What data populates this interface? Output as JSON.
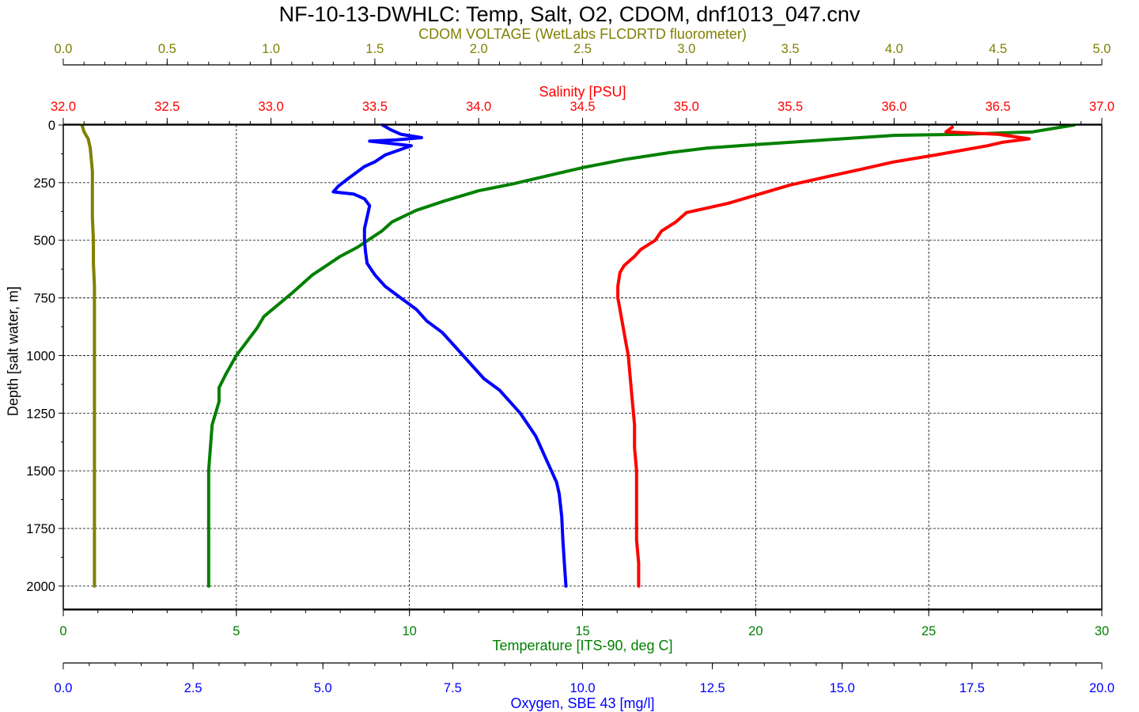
{
  "chart_data": {
    "type": "line",
    "title": "NF-10-13-DWHLC: Temp, Salt, O2, CDOM, dnf1013_047.cnv",
    "y_axis": {
      "label": "Depth [salt water, m]",
      "range": [
        0,
        2100
      ],
      "inverted": true,
      "ticks": [
        "0",
        "250",
        "500",
        "750",
        "1000",
        "1250",
        "1500",
        "1750",
        "2000"
      ],
      "tick_values": [
        0,
        250,
        500,
        750,
        1000,
        1250,
        1500,
        1750,
        2000
      ]
    },
    "x_axes": [
      {
        "id": "cdom",
        "position": "top",
        "label": "CDOM VOLTAGE (WetLabs FLCDRTD fluorometer)",
        "color": "#808000",
        "range": [
          0.0,
          5.0
        ],
        "ticks": [
          "0.0",
          "0.5",
          "1.0",
          "1.5",
          "2.0",
          "2.5",
          "3.0",
          "3.5",
          "4.0",
          "4.5",
          "5.0"
        ],
        "tick_values": [
          0.0,
          0.5,
          1.0,
          1.5,
          2.0,
          2.5,
          3.0,
          3.5,
          4.0,
          4.5,
          5.0
        ]
      },
      {
        "id": "salinity",
        "position": "top",
        "label": "Salinity [PSU]",
        "color": "#ff0000",
        "range": [
          32.0,
          37.0
        ],
        "ticks": [
          "32.0",
          "32.5",
          "33.0",
          "33.5",
          "34.0",
          "34.5",
          "35.0",
          "35.5",
          "36.0",
          "36.5",
          "37.0"
        ],
        "tick_values": [
          32.0,
          32.5,
          33.0,
          33.5,
          34.0,
          34.5,
          35.0,
          35.5,
          36.0,
          36.5,
          37.0
        ]
      },
      {
        "id": "temperature",
        "position": "bottom",
        "label": "Temperature [ITS-90, deg C]",
        "color": "#008000",
        "range": [
          0,
          30
        ],
        "ticks": [
          "0",
          "5",
          "10",
          "15",
          "20",
          "25",
          "30"
        ],
        "tick_values": [
          0,
          5,
          10,
          15,
          20,
          25,
          30
        ]
      },
      {
        "id": "oxygen",
        "position": "bottom",
        "label": "Oxygen, SBE 43 [mg/l]",
        "color": "#0000ff",
        "range": [
          0.0,
          20.0
        ],
        "ticks": [
          "0.0",
          "2.5",
          "5.0",
          "7.5",
          "10.0",
          "12.5",
          "15.0",
          "17.5",
          "20.0"
        ],
        "tick_values": [
          0.0,
          2.5,
          5.0,
          7.5,
          10.0,
          12.5,
          15.0,
          17.5,
          20.0
        ]
      }
    ],
    "grid": true,
    "series": [
      {
        "axis": "temperature",
        "color": "#008000",
        "points": [
          [
            29.2,
            0
          ],
          [
            28,
            30
          ],
          [
            26,
            40
          ],
          [
            24,
            45
          ],
          [
            23,
            55
          ],
          [
            22,
            65
          ],
          [
            21,
            75
          ],
          [
            20,
            85
          ],
          [
            18.6,
            100
          ],
          [
            17.5,
            120
          ],
          [
            16.2,
            150
          ],
          [
            15,
            185
          ],
          [
            14,
            220
          ],
          [
            13,
            255
          ],
          [
            12,
            285
          ],
          [
            11,
            330
          ],
          [
            10.2,
            370
          ],
          [
            9.5,
            420
          ],
          [
            9.2,
            460
          ],
          [
            8.5,
            530
          ],
          [
            8,
            570
          ],
          [
            7.6,
            610
          ],
          [
            7.2,
            650
          ],
          [
            6.9,
            690
          ],
          [
            6.6,
            730
          ],
          [
            6.2,
            780
          ],
          [
            5.8,
            830
          ],
          [
            5.6,
            880
          ],
          [
            5.3,
            940
          ],
          [
            5.0,
            1000
          ],
          [
            4.7,
            1080
          ],
          [
            4.5,
            1140
          ],
          [
            4.5,
            1200
          ],
          [
            4.4,
            1250
          ],
          [
            4.3,
            1300
          ],
          [
            4.25,
            1400
          ],
          [
            4.2,
            1500
          ],
          [
            4.2,
            1600
          ],
          [
            4.2,
            1700
          ],
          [
            4.2,
            1800
          ],
          [
            4.2,
            1900
          ],
          [
            4.2,
            2000
          ]
        ]
      },
      {
        "axis": "salinity",
        "color": "#ff0000",
        "points": [
          [
            36.28,
            10
          ],
          [
            36.25,
            30
          ],
          [
            36.5,
            40
          ],
          [
            36.65,
            60
          ],
          [
            36.52,
            75
          ],
          [
            36.45,
            90
          ],
          [
            36.2,
            130
          ],
          [
            36.0,
            160
          ],
          [
            35.85,
            190
          ],
          [
            35.7,
            220
          ],
          [
            35.5,
            260
          ],
          [
            35.35,
            300
          ],
          [
            35.2,
            340
          ],
          [
            35.0,
            380
          ],
          [
            34.95,
            420
          ],
          [
            34.88,
            460
          ],
          [
            34.85,
            500
          ],
          [
            34.78,
            540
          ],
          [
            34.75,
            570
          ],
          [
            34.7,
            610
          ],
          [
            34.68,
            640
          ],
          [
            34.67,
            700
          ],
          [
            34.67,
            750
          ],
          [
            34.68,
            800
          ],
          [
            34.69,
            850
          ],
          [
            34.7,
            900
          ],
          [
            34.71,
            950
          ],
          [
            34.72,
            1000
          ],
          [
            34.73,
            1100
          ],
          [
            34.74,
            1200
          ],
          [
            34.75,
            1300
          ],
          [
            34.75,
            1400
          ],
          [
            34.76,
            1500
          ],
          [
            34.76,
            1600
          ],
          [
            34.76,
            1700
          ],
          [
            34.76,
            1800
          ],
          [
            34.77,
            1900
          ],
          [
            34.77,
            2000
          ]
        ]
      },
      {
        "axis": "oxygen",
        "color": "#0000ff",
        "points": [
          [
            6.15,
            0
          ],
          [
            6.3,
            20
          ],
          [
            6.5,
            40
          ],
          [
            6.9,
            55
          ],
          [
            6.4,
            65
          ],
          [
            5.9,
            70
          ],
          [
            6.7,
            90
          ],
          [
            6.2,
            130
          ],
          [
            6.0,
            160
          ],
          [
            5.8,
            180
          ],
          [
            5.5,
            230
          ],
          [
            5.3,
            265
          ],
          [
            5.2,
            290
          ],
          [
            5.6,
            300
          ],
          [
            5.8,
            320
          ],
          [
            5.9,
            350
          ],
          [
            5.85,
            400
          ],
          [
            5.8,
            450
          ],
          [
            5.8,
            500
          ],
          [
            5.82,
            550
          ],
          [
            5.85,
            600
          ],
          [
            6.0,
            650
          ],
          [
            6.2,
            700
          ],
          [
            6.5,
            750
          ],
          [
            6.8,
            800
          ],
          [
            7.0,
            850
          ],
          [
            7.3,
            900
          ],
          [
            7.5,
            950
          ],
          [
            7.7,
            1000
          ],
          [
            7.9,
            1050
          ],
          [
            8.1,
            1100
          ],
          [
            8.4,
            1150
          ],
          [
            8.6,
            1200
          ],
          [
            8.8,
            1250
          ],
          [
            8.95,
            1300
          ],
          [
            9.1,
            1350
          ],
          [
            9.2,
            1400
          ],
          [
            9.3,
            1450
          ],
          [
            9.4,
            1500
          ],
          [
            9.5,
            1550
          ],
          [
            9.55,
            1600
          ],
          [
            9.6,
            1700
          ],
          [
            9.62,
            1800
          ],
          [
            9.65,
            1900
          ],
          [
            9.68,
            2000
          ]
        ]
      },
      {
        "axis": "cdom",
        "color": "#808000",
        "points": [
          [
            0.09,
            0
          ],
          [
            0.1,
            30
          ],
          [
            0.12,
            60
          ],
          [
            0.13,
            100
          ],
          [
            0.14,
            200
          ],
          [
            0.14,
            300
          ],
          [
            0.14,
            400
          ],
          [
            0.145,
            500
          ],
          [
            0.145,
            600
          ],
          [
            0.15,
            700
          ],
          [
            0.15,
            800
          ],
          [
            0.15,
            900
          ],
          [
            0.15,
            1000
          ],
          [
            0.15,
            1200
          ],
          [
            0.15,
            1400
          ],
          [
            0.15,
            1600
          ],
          [
            0.15,
            1800
          ],
          [
            0.15,
            2000
          ]
        ]
      }
    ]
  }
}
